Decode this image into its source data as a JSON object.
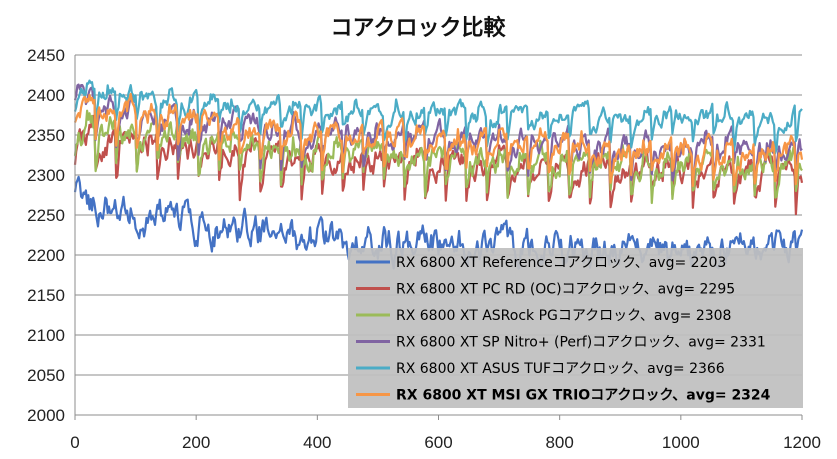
{
  "chart_data": {
    "type": "line",
    "title": "コアクロック比較",
    "xlabel": "",
    "ylabel": "",
    "xlim": [
      0,
      1200
    ],
    "ylim": [
      2000,
      2450
    ],
    "x_ticks": [
      "0",
      "200",
      "400",
      "600",
      "800",
      "1000",
      "1200"
    ],
    "y_ticks": [
      "2000",
      "2050",
      "2100",
      "2150",
      "2200",
      "2250",
      "2300",
      "2350",
      "2400",
      "2450"
    ],
    "grid": {
      "horizontal": true,
      "vertical": false
    },
    "legend_position": "bottom-right",
    "series": [
      {
        "name": "RX 6800 XT Referenceコアクロック、avg= 2203",
        "color": "#4472C4",
        "start": 2275,
        "end": 2205,
        "amplitude": 22,
        "bold": false
      },
      {
        "name": "RX 6800 XT PC RD (OC)コアクロック、avg= 2295",
        "color": "#C0504D",
        "start": 2345,
        "end": 2300,
        "amplitude": 25,
        "bold": false
      },
      {
        "name": "RX 6800 XT ASRock PGコアクロック、avg= 2308",
        "color": "#9BBB59",
        "start": 2355,
        "end": 2310,
        "amplitude": 25,
        "bold": false
      },
      {
        "name": "RX 6800 XT SP Nitro+ (Perf)コアクロック、avg= 2331",
        "color": "#8064A2",
        "start": 2385,
        "end": 2330,
        "amplitude": 22,
        "bold": false
      },
      {
        "name": "RX 6800 XT ASUS TUFコアクロック、avg= 2366",
        "color": "#4BACC6",
        "start": 2400,
        "end": 2368,
        "amplitude": 18,
        "bold": false
      },
      {
        "name": "RX 6800 XT MSI GX TRIOコアクロック、avg= 2324",
        "color": "#F79646",
        "start": 2390,
        "end": 2325,
        "amplitude": 22,
        "bold": true
      }
    ]
  }
}
